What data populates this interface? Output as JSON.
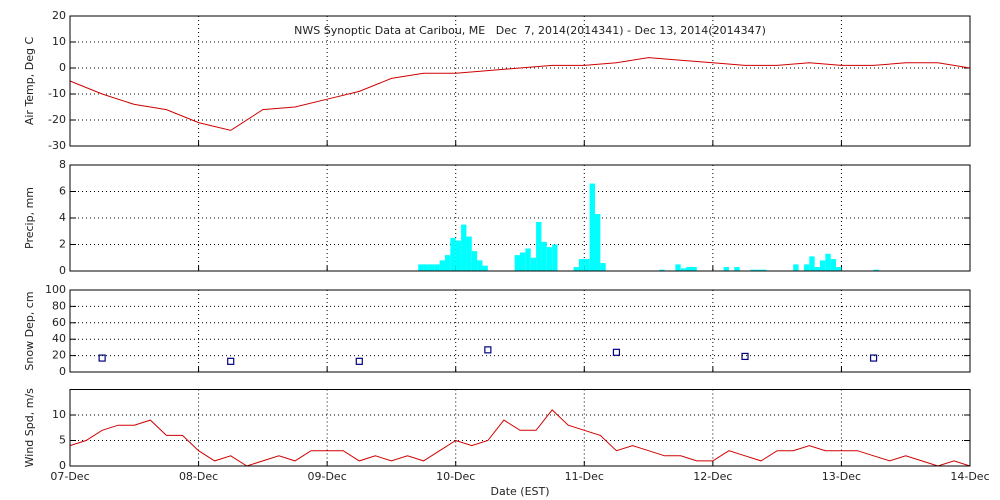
{
  "chart_data": [
    {
      "type": "line",
      "title": "NWS Synoptic Data at Caribou, ME   Dec  7, 2014(2014341) - Dec 13, 2014(2014347)",
      "ylabel": "Air Temp, Deg C",
      "color": "#d00000",
      "x": [
        0,
        6,
        12,
        18,
        24,
        30,
        36,
        42,
        48,
        54,
        60,
        66,
        72,
        78,
        84,
        90,
        96,
        102,
        108,
        114,
        120,
        126,
        132,
        138,
        144,
        150,
        156,
        162,
        168
      ],
      "values": [
        -5,
        -10,
        -14,
        -16,
        -21,
        -24,
        -16,
        -15,
        -12,
        -9,
        -4,
        -2,
        -2,
        -1,
        0,
        1,
        1,
        2,
        4,
        3,
        2,
        1,
        1,
        2,
        1,
        1,
        2,
        2,
        0
      ],
      "ylim": [
        -30,
        20
      ],
      "yticks": [
        -30,
        -20,
        -10,
        0,
        10,
        20
      ],
      "grid": true
    },
    {
      "type": "bar",
      "ylabel": "Precip, mm",
      "color": "#00ffff",
      "x": [
        65,
        66,
        67,
        68,
        69,
        70,
        71,
        72,
        73,
        74,
        75,
        76,
        77,
        83,
        84,
        85,
        86,
        87,
        88,
        89,
        90,
        94,
        95,
        96,
        97,
        98,
        99,
        110,
        113,
        114,
        115,
        116,
        122,
        124,
        127,
        128,
        129,
        135,
        137,
        138,
        139,
        140,
        141,
        142,
        143,
        150
      ],
      "values": [
        0.5,
        0.5,
        0.5,
        0.5,
        0.8,
        1.2,
        2.5,
        2.3,
        3.5,
        2.6,
        1.5,
        0.8,
        0.4,
        1.2,
        1.4,
        1.7,
        1.0,
        3.7,
        2.2,
        1.8,
        2.0,
        0.3,
        0.9,
        0.9,
        6.6,
        4.3,
        0.6,
        0.1,
        0.5,
        0.2,
        0.3,
        0.3,
        0.3,
        0.3,
        0.1,
        0.1,
        0.1,
        0.5,
        0.5,
        1.1,
        0.3,
        0.8,
        1.3,
        0.9,
        0.3,
        0.1
      ],
      "ylim": [
        0,
        8
      ],
      "yticks": [
        0,
        2,
        4,
        6,
        8
      ],
      "grid": true
    },
    {
      "type": "scatter",
      "ylabel": "Snow Dep, cm",
      "color": "#000080",
      "x": [
        6,
        30,
        54,
        78,
        102,
        126,
        150
      ],
      "values": [
        17,
        13,
        13,
        27,
        24,
        19,
        17
      ],
      "ylim": [
        0,
        100
      ],
      "yticks": [
        0,
        20,
        40,
        60,
        80,
        100
      ],
      "grid": true
    },
    {
      "type": "line",
      "ylabel": "Wind Spd, m/s",
      "xlabel": "Date (EST)",
      "color": "#d00000",
      "x": [
        0,
        3,
        6,
        9,
        12,
        15,
        18,
        21,
        24,
        27,
        30,
        33,
        36,
        39,
        42,
        45,
        48,
        51,
        54,
        57,
        60,
        63,
        66,
        69,
        72,
        75,
        78,
        81,
        84,
        87,
        90,
        93,
        96,
        99,
        102,
        105,
        108,
        111,
        114,
        117,
        120,
        123,
        126,
        129,
        132,
        135,
        138,
        141,
        144,
        147,
        150,
        153,
        156,
        159,
        162,
        165,
        168
      ],
      "values": [
        4,
        5,
        7,
        8,
        8,
        9,
        6,
        6,
        3,
        1,
        2,
        0,
        1,
        2,
        1,
        3,
        3,
        3,
        1,
        2,
        1,
        2,
        1,
        3,
        5,
        4,
        5,
        9,
        7,
        7,
        11,
        8,
        7,
        6,
        3,
        4,
        3,
        2,
        2,
        1,
        1,
        3,
        2,
        1,
        3,
        3,
        4,
        3,
        3,
        3,
        2,
        1,
        2,
        1,
        0,
        1,
        0
      ],
      "ylim": [
        0,
        15
      ],
      "yticks": [
        0,
        5,
        10
      ],
      "grid": true,
      "xlim": [
        0,
        168
      ],
      "xticks": [
        {
          "value": 0,
          "label": "07-Dec"
        },
        {
          "value": 24,
          "label": "08-Dec"
        },
        {
          "value": 48,
          "label": "09-Dec"
        },
        {
          "value": 72,
          "label": "10-Dec"
        },
        {
          "value": 96,
          "label": "11-Dec"
        },
        {
          "value": 120,
          "label": "12-Dec"
        },
        {
          "value": 144,
          "label": "13-Dec"
        },
        {
          "value": 168,
          "label": "14-Dec"
        }
      ]
    }
  ]
}
